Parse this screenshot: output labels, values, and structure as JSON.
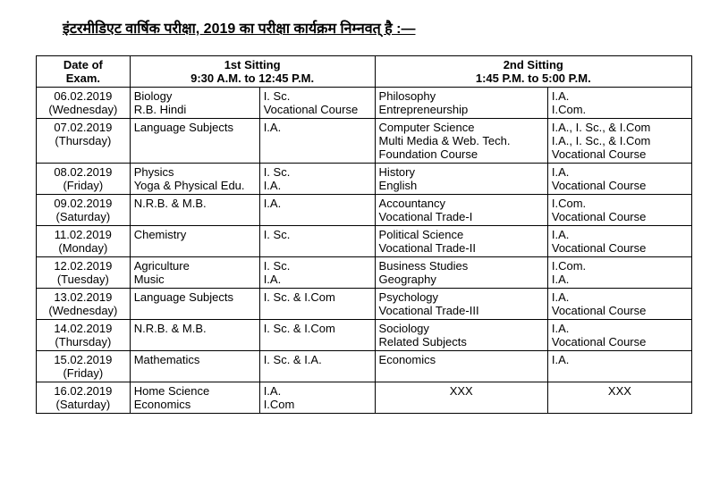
{
  "title": "इंटरमीडिएट वार्षिक परीक्षा, 2019 का परीक्षा कार्यक्रम निम्नवत् है :—",
  "headers": {
    "date_label": "Date of",
    "date_sublabel": "Exam.",
    "sitting1": "1st Sitting",
    "sitting1_time": "9:30 A.M. to 12:45 P.M.",
    "sitting2": "2nd Sitting",
    "sitting2_time": "1:45 P.M. to 5:00 P.M."
  },
  "rows": [
    {
      "date": "06.02.2019",
      "day": "(Wednesday)",
      "s1_sub": [
        "Biology",
        "R.B. Hindi"
      ],
      "s1_str": [
        "I. Sc.",
        "Vocational Course"
      ],
      "s2_sub": [
        "Philosophy",
        "Entrepreneurship"
      ],
      "s2_str": [
        "I.A.",
        "I.Com."
      ]
    },
    {
      "date": "07.02.2019",
      "day": "(Thursday)",
      "s1_sub": [
        "Language Subjects"
      ],
      "s1_str": [
        "I.A."
      ],
      "s2_sub": [
        "Computer Science",
        "Multi Media & Web. Tech.",
        "Foundation Course"
      ],
      "s2_str": [
        "I.A., I. Sc., & I.Com",
        "I.A., I. Sc., & I.Com",
        "Vocational Course"
      ]
    },
    {
      "date": "08.02.2019",
      "day": "(Friday)",
      "s1_sub": [
        "Physics",
        "Yoga & Physical Edu."
      ],
      "s1_str": [
        "I. Sc.",
        "I.A."
      ],
      "s2_sub": [
        "History",
        "English"
      ],
      "s2_str": [
        "I.A.",
        "Vocational Course"
      ]
    },
    {
      "date": "09.02.2019",
      "day": "(Saturday)",
      "s1_sub": [
        "N.R.B. & M.B."
      ],
      "s1_str": [
        "I.A."
      ],
      "s2_sub": [
        "Accountancy",
        "Vocational Trade-I"
      ],
      "s2_str": [
        "I.Com.",
        "Vocational Course"
      ]
    },
    {
      "date": "11.02.2019",
      "day": "(Monday)",
      "s1_sub": [
        "Chemistry"
      ],
      "s1_str": [
        "I. Sc."
      ],
      "s2_sub": [
        "Political Science",
        "Vocational Trade-II"
      ],
      "s2_str": [
        "I.A.",
        "Vocational Course"
      ]
    },
    {
      "date": "12.02.2019",
      "day": "(Tuesday)",
      "s1_sub": [
        "Agriculture",
        "Music"
      ],
      "s1_str": [
        "I. Sc.",
        "I.A."
      ],
      "s2_sub": [
        "Business Studies",
        "Geography"
      ],
      "s2_str": [
        "I.Com.",
        "I.A."
      ]
    },
    {
      "date": "13.02.2019",
      "day": "(Wednesday)",
      "s1_sub": [
        "Language Subjects"
      ],
      "s1_str": [
        "I. Sc. & I.Com"
      ],
      "s2_sub": [
        "Psychology",
        "Vocational Trade-III"
      ],
      "s2_str": [
        "I.A.",
        "Vocational Course"
      ]
    },
    {
      "date": "14.02.2019",
      "day": "(Thursday)",
      "s1_sub": [
        "N.R.B. & M.B."
      ],
      "s1_str": [
        "I. Sc. & I.Com"
      ],
      "s2_sub": [
        "Sociology",
        "Related Subjects"
      ],
      "s2_str": [
        "I.A.",
        "Vocational Course"
      ]
    },
    {
      "date": "15.02.2019",
      "day": "(Friday)",
      "s1_sub": [
        "Mathematics"
      ],
      "s1_str": [
        "I. Sc. & I.A."
      ],
      "s2_sub": [
        "Economics"
      ],
      "s2_str": [
        "I.A."
      ]
    },
    {
      "date": "16.02.2019",
      "day": "(Saturday)",
      "s1_sub": [
        "Home Science",
        "Economics"
      ],
      "s1_str": [
        "I.A.",
        "I.Com"
      ],
      "s2_sub": [
        "XXX"
      ],
      "s2_str": [
        "XXX"
      ],
      "s2_center": true
    }
  ]
}
